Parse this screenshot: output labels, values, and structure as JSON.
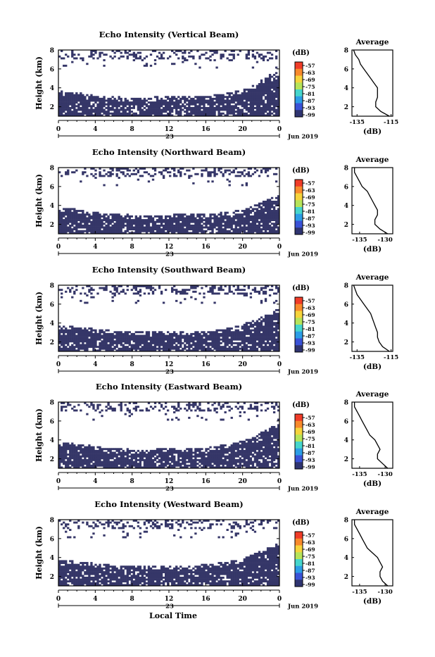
{
  "figure": {
    "xlabel": "Local Time",
    "date_label": "Jun 2019",
    "day_label": "23",
    "colorbar": {
      "unit": "(dB)",
      "ticks": [
        "-57",
        "-63",
        "-69",
        "-75",
        "-81",
        "-87",
        "-93",
        "-99"
      ],
      "colors": [
        "#f03c28",
        "#f88a2c",
        "#f6d43c",
        "#b6e45a",
        "#46d6cc",
        "#2c9de6",
        "#3a52d6",
        "#2f3470"
      ]
    },
    "colors": {
      "echo_fill": "#353668",
      "line": "#000000"
    }
  },
  "chart_data": [
    {
      "type": "heatmap",
      "title": "Echo Intensity (Vertical Beam)",
      "ylabel": "Height (km)",
      "x_ticks": [
        "0",
        "4",
        "8",
        "12",
        "16",
        "20",
        "0"
      ],
      "xlim": [
        0,
        24
      ],
      "ylim": [
        1,
        8
      ],
      "y_ticks": [
        "2",
        "4",
        "6",
        "8"
      ],
      "cloud_base_km": [
        3.7,
        3.6,
        3.5,
        3.4,
        3.2,
        3.1,
        3.1,
        3.0,
        3.0,
        3.0,
        3.0,
        3.1,
        3.1,
        3.1,
        3.1,
        3.1,
        3.2,
        3.3,
        3.4,
        3.6,
        3.8,
        4.2,
        4.8,
        5.4,
        5.8
      ],
      "average_profile": {
        "title": "Average",
        "xlabel": "(dB)",
        "x_ticks": [
          "-135",
          "-115"
        ],
        "xlim": [
          -138,
          -114
        ],
        "heights_km": [
          1.0,
          1.5,
          2.0,
          2.5,
          3.0,
          3.5,
          4.0,
          4.5,
          5.0,
          5.5,
          6.0,
          6.5,
          7.0,
          7.5,
          8.0
        ],
        "values_db": [
          -116,
          -121,
          -124,
          -124,
          -123,
          -123,
          -123,
          -125,
          -127,
          -129,
          -131,
          -133,
          -134,
          -136,
          -137
        ]
      }
    },
    {
      "type": "heatmap",
      "title": "Echo Intensity (Northward Beam)",
      "ylabel": "Height (km)",
      "x_ticks": [
        "0",
        "4",
        "8",
        "12",
        "16",
        "20",
        "0"
      ],
      "xlim": [
        0,
        24
      ],
      "ylim": [
        1,
        8
      ],
      "y_ticks": [
        "2",
        "4",
        "6",
        "8"
      ],
      "cloud_base_km": [
        3.8,
        3.7,
        3.6,
        3.4,
        3.3,
        3.2,
        3.1,
        3.1,
        3.0,
        3.0,
        3.0,
        3.0,
        3.0,
        3.1,
        3.1,
        3.1,
        3.1,
        3.2,
        3.3,
        3.4,
        3.6,
        3.9,
        4.3,
        4.8,
        5.2
      ],
      "average_profile": {
        "title": "Average",
        "xlabel": "(dB)",
        "x_ticks": [
          "-135",
          "-130"
        ],
        "xlim": [
          -136.5,
          -128.5
        ],
        "heights_km": [
          1.0,
          1.5,
          2.0,
          2.5,
          3.0,
          3.5,
          4.0,
          4.5,
          5.0,
          5.5,
          6.0,
          6.5,
          7.0,
          7.5,
          8.0
        ],
        "values_db": [
          -129.5,
          -131,
          -132,
          -132,
          -131.5,
          -131.5,
          -132,
          -132.5,
          -133,
          -133.5,
          -134.5,
          -135,
          -135.5,
          -136,
          -136
        ]
      }
    },
    {
      "type": "heatmap",
      "title": "Echo Intensity (Southward Beam)",
      "ylabel": "Height (km)",
      "x_ticks": [
        "0",
        "4",
        "8",
        "12",
        "16",
        "20",
        "0"
      ],
      "xlim": [
        0,
        24
      ],
      "ylim": [
        1,
        8
      ],
      "y_ticks": [
        "2",
        "4",
        "6",
        "8"
      ],
      "cloud_base_km": [
        3.8,
        3.7,
        3.6,
        3.5,
        3.4,
        3.3,
        3.2,
        3.2,
        3.1,
        3.1,
        3.1,
        3.1,
        3.1,
        3.1,
        3.1,
        3.1,
        3.2,
        3.3,
        3.4,
        3.6,
        3.9,
        4.2,
        4.6,
        5.1,
        5.6
      ],
      "average_profile": {
        "title": "Average",
        "xlabel": "(dB)",
        "x_ticks": [
          "-135",
          "-115"
        ],
        "xlim": [
          -138,
          -114
        ],
        "heights_km": [
          1.0,
          1.5,
          2.0,
          2.5,
          3.0,
          3.5,
          4.0,
          4.5,
          5.0,
          5.5,
          6.0,
          6.5,
          7.0,
          7.5,
          8.0
        ],
        "values_db": [
          -116,
          -120,
          -122,
          -123,
          -123,
          -124,
          -125,
          -126,
          -127,
          -129,
          -131,
          -133,
          -135,
          -136,
          -137
        ]
      }
    },
    {
      "type": "heatmap",
      "title": "Echo Intensity (Eastward Beam)",
      "ylabel": "Height (km)",
      "x_ticks": [
        "0",
        "4",
        "8",
        "12",
        "16",
        "20",
        "0"
      ],
      "xlim": [
        0,
        24
      ],
      "ylim": [
        1,
        8
      ],
      "y_ticks": [
        "2",
        "4",
        "6",
        "8"
      ],
      "cloud_base_km": [
        3.8,
        3.7,
        3.6,
        3.5,
        3.3,
        3.2,
        3.1,
        3.1,
        3.0,
        3.0,
        3.0,
        3.1,
        3.1,
        3.1,
        3.1,
        3.1,
        3.2,
        3.3,
        3.5,
        3.7,
        3.9,
        4.3,
        4.8,
        5.3,
        5.8
      ],
      "average_profile": {
        "title": "Average",
        "xlabel": "(dB)",
        "x_ticks": [
          "-135",
          "-130"
        ],
        "xlim": [
          -136.5,
          -128.5
        ],
        "heights_km": [
          1.0,
          1.5,
          2.0,
          2.5,
          3.0,
          3.5,
          4.0,
          4.5,
          5.0,
          5.5,
          6.0,
          6.5,
          7.0,
          7.5,
          8.0
        ],
        "values_db": [
          -129.5,
          -130.5,
          -131.5,
          -131.5,
          -131,
          -131.5,
          -132,
          -133,
          -133.5,
          -134,
          -134.5,
          -135,
          -135.5,
          -136,
          -136
        ]
      }
    },
    {
      "type": "heatmap",
      "title": "Echo Intensity (Westward Beam)",
      "ylabel": "Height (km)",
      "x_ticks": [
        "0",
        "4",
        "8",
        "12",
        "16",
        "20",
        "0"
      ],
      "xlim": [
        0,
        24
      ],
      "ylim": [
        1,
        8
      ],
      "y_ticks": [
        "2",
        "4",
        "6",
        "8"
      ],
      "cloud_base_km": [
        3.8,
        3.7,
        3.6,
        3.5,
        3.4,
        3.3,
        3.2,
        3.2,
        3.1,
        3.1,
        3.1,
        3.2,
        3.2,
        3.2,
        3.2,
        3.2,
        3.3,
        3.4,
        3.5,
        3.7,
        3.9,
        4.3,
        4.7,
        5.2,
        5.7
      ],
      "average_profile": {
        "title": "Average",
        "xlabel": "(dB)",
        "x_ticks": [
          "-135",
          "-130"
        ],
        "xlim": [
          -136.5,
          -128.5
        ],
        "heights_km": [
          1.0,
          1.5,
          2.0,
          2.5,
          3.0,
          3.5,
          4.0,
          4.5,
          5.0,
          5.5,
          6.0,
          6.5,
          7.0,
          7.5,
          8.0
        ],
        "values_db": [
          -129.5,
          -130.5,
          -131,
          -131,
          -130.5,
          -131,
          -131.5,
          -132.5,
          -133.5,
          -134,
          -134.5,
          -135,
          -135.5,
          -136,
          -136
        ]
      }
    }
  ]
}
